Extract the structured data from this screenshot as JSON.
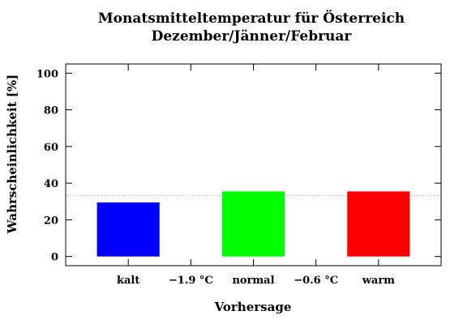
{
  "chart_data": {
    "type": "bar",
    "title": "Monatsmitteltemperatur für Österreich",
    "subtitle": "Dezember/Jänner/Februar",
    "xlabel": "Vorhersage",
    "ylabel": "Wahrscheinlichkeit [%]",
    "ylim": [
      -5,
      105
    ],
    "yticks": [
      0,
      20,
      40,
      60,
      80,
      100
    ],
    "categories": [
      "kalt",
      "normal",
      "warm"
    ],
    "values": [
      29.5,
      35.5,
      35.5
    ],
    "colors": [
      "#0000ff",
      "#00ff00",
      "#ff0000"
    ],
    "threshold_labels": [
      "−1.9 °C",
      "−0.6 °C"
    ],
    "reference_line": 33.3,
    "reference_line_color": "#a0a0a0",
    "grid": false
  }
}
